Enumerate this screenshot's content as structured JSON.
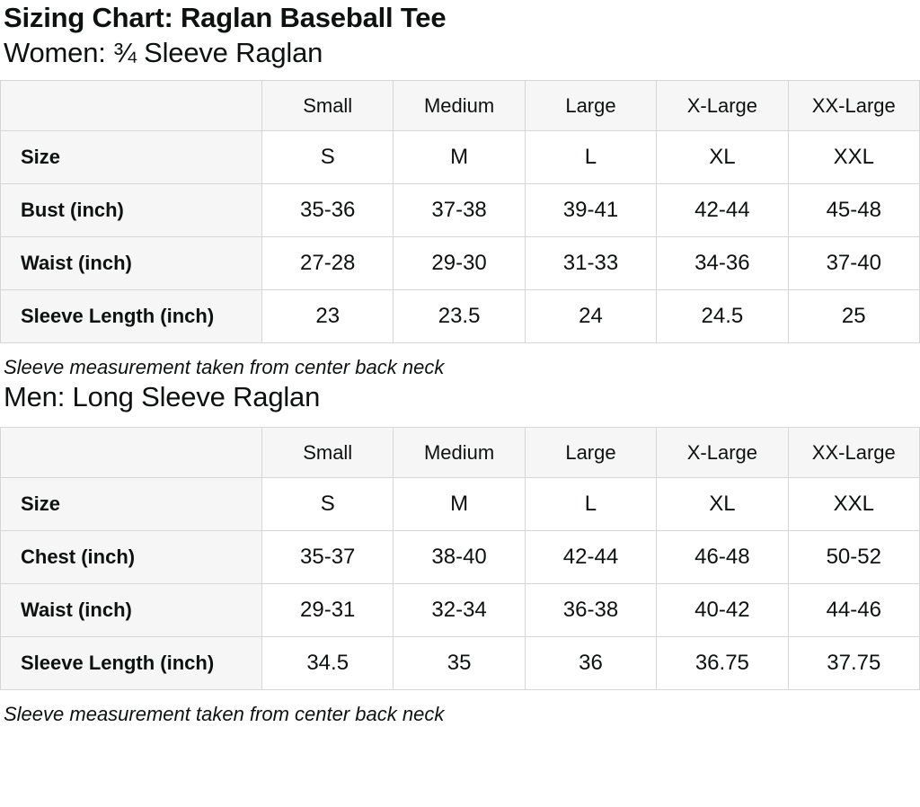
{
  "page": {
    "title": "Sizing Chart: Raglan Baseball Tee"
  },
  "colors": {
    "text": "#0f1111",
    "table_header_bg": "#f6f6f6",
    "table_border": "#d6d6d6",
    "cell_bg": "#ffffff"
  },
  "sections": [
    {
      "heading": "Women: ¾ Sleeve Raglan",
      "table": {
        "columns": [
          "",
          "Small",
          "Medium",
          "Large",
          "X-Large",
          "XX-Large"
        ],
        "rows": [
          {
            "label": "Size",
            "values": [
              "S",
              "M",
              "L",
              "XL",
              "XXL"
            ]
          },
          {
            "label": "Bust (inch)",
            "values": [
              "35-36",
              "37-38",
              "39-41",
              "42-44",
              "45-48"
            ]
          },
          {
            "label": "Waist (inch)",
            "values": [
              "27-28",
              "29-30",
              "31-33",
              "34-36",
              "37-40"
            ]
          },
          {
            "label": "Sleeve Length (inch)",
            "values": [
              "23",
              "23.5",
              "24",
              "24.5",
              "25"
            ]
          }
        ]
      },
      "footnote": "Sleeve measurement taken from center back neck"
    },
    {
      "heading": "Men: Long Sleeve Raglan",
      "table": {
        "columns": [
          "",
          "Small",
          "Medium",
          "Large",
          "X-Large",
          "XX-Large"
        ],
        "rows": [
          {
            "label": "Size",
            "values": [
              "S",
              "M",
              "L",
              "XL",
              "XXL"
            ]
          },
          {
            "label": "Chest (inch)",
            "values": [
              "35-37",
              "38-40",
              "42-44",
              "46-48",
              "50-52"
            ]
          },
          {
            "label": "Waist (inch)",
            "values": [
              "29-31",
              "32-34",
              "36-38",
              "40-42",
              "44-46"
            ]
          },
          {
            "label": "Sleeve Length (inch)",
            "values": [
              "34.5",
              "35",
              "36",
              "36.75",
              "37.75"
            ]
          }
        ]
      },
      "footnote": "Sleeve measurement taken from center back neck"
    }
  ]
}
